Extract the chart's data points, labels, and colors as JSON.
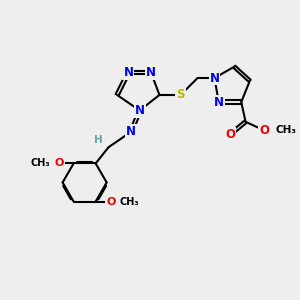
{
  "background_color": "#eeeeee",
  "atom_colors": {
    "N": "#0000ee",
    "S": "#b8b800",
    "O": "#ee0000",
    "C": "#000000",
    "H": "#5fa8a8"
  },
  "bond_color": "#000000",
  "bond_width": 1.5,
  "figsize": [
    3.0,
    3.0
  ],
  "dpi": 100,
  "xlim": [
    0,
    10
  ],
  "ylim": [
    0,
    10
  ]
}
